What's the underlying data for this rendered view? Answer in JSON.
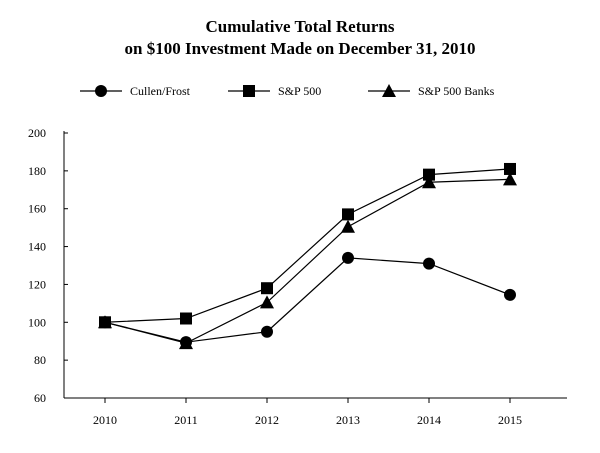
{
  "chart_data": {
    "type": "line",
    "title": [
      "Cumulative Total Returns",
      "on $100 Investment Made on December 31, 2010"
    ],
    "xlabel": "",
    "ylabel": "",
    "categories": [
      "2010",
      "2011",
      "2012",
      "2013",
      "2014",
      "2015"
    ],
    "ylim": [
      60,
      200
    ],
    "yticks": [
      60,
      80,
      100,
      120,
      140,
      160,
      180,
      200
    ],
    "grid": false,
    "legend_position": "top",
    "series": [
      {
        "name": "Cullen/Frost",
        "marker": "circle",
        "values": [
          100,
          89.5,
          95,
          134,
          131,
          114.5
        ]
      },
      {
        "name": "S&P 500",
        "marker": "square",
        "values": [
          100,
          102,
          118,
          157,
          178,
          181
        ]
      },
      {
        "name": "S&P 500 Banks",
        "marker": "triangle",
        "values": [
          100,
          89,
          110.5,
          150.5,
          174,
          175.5
        ]
      }
    ]
  }
}
